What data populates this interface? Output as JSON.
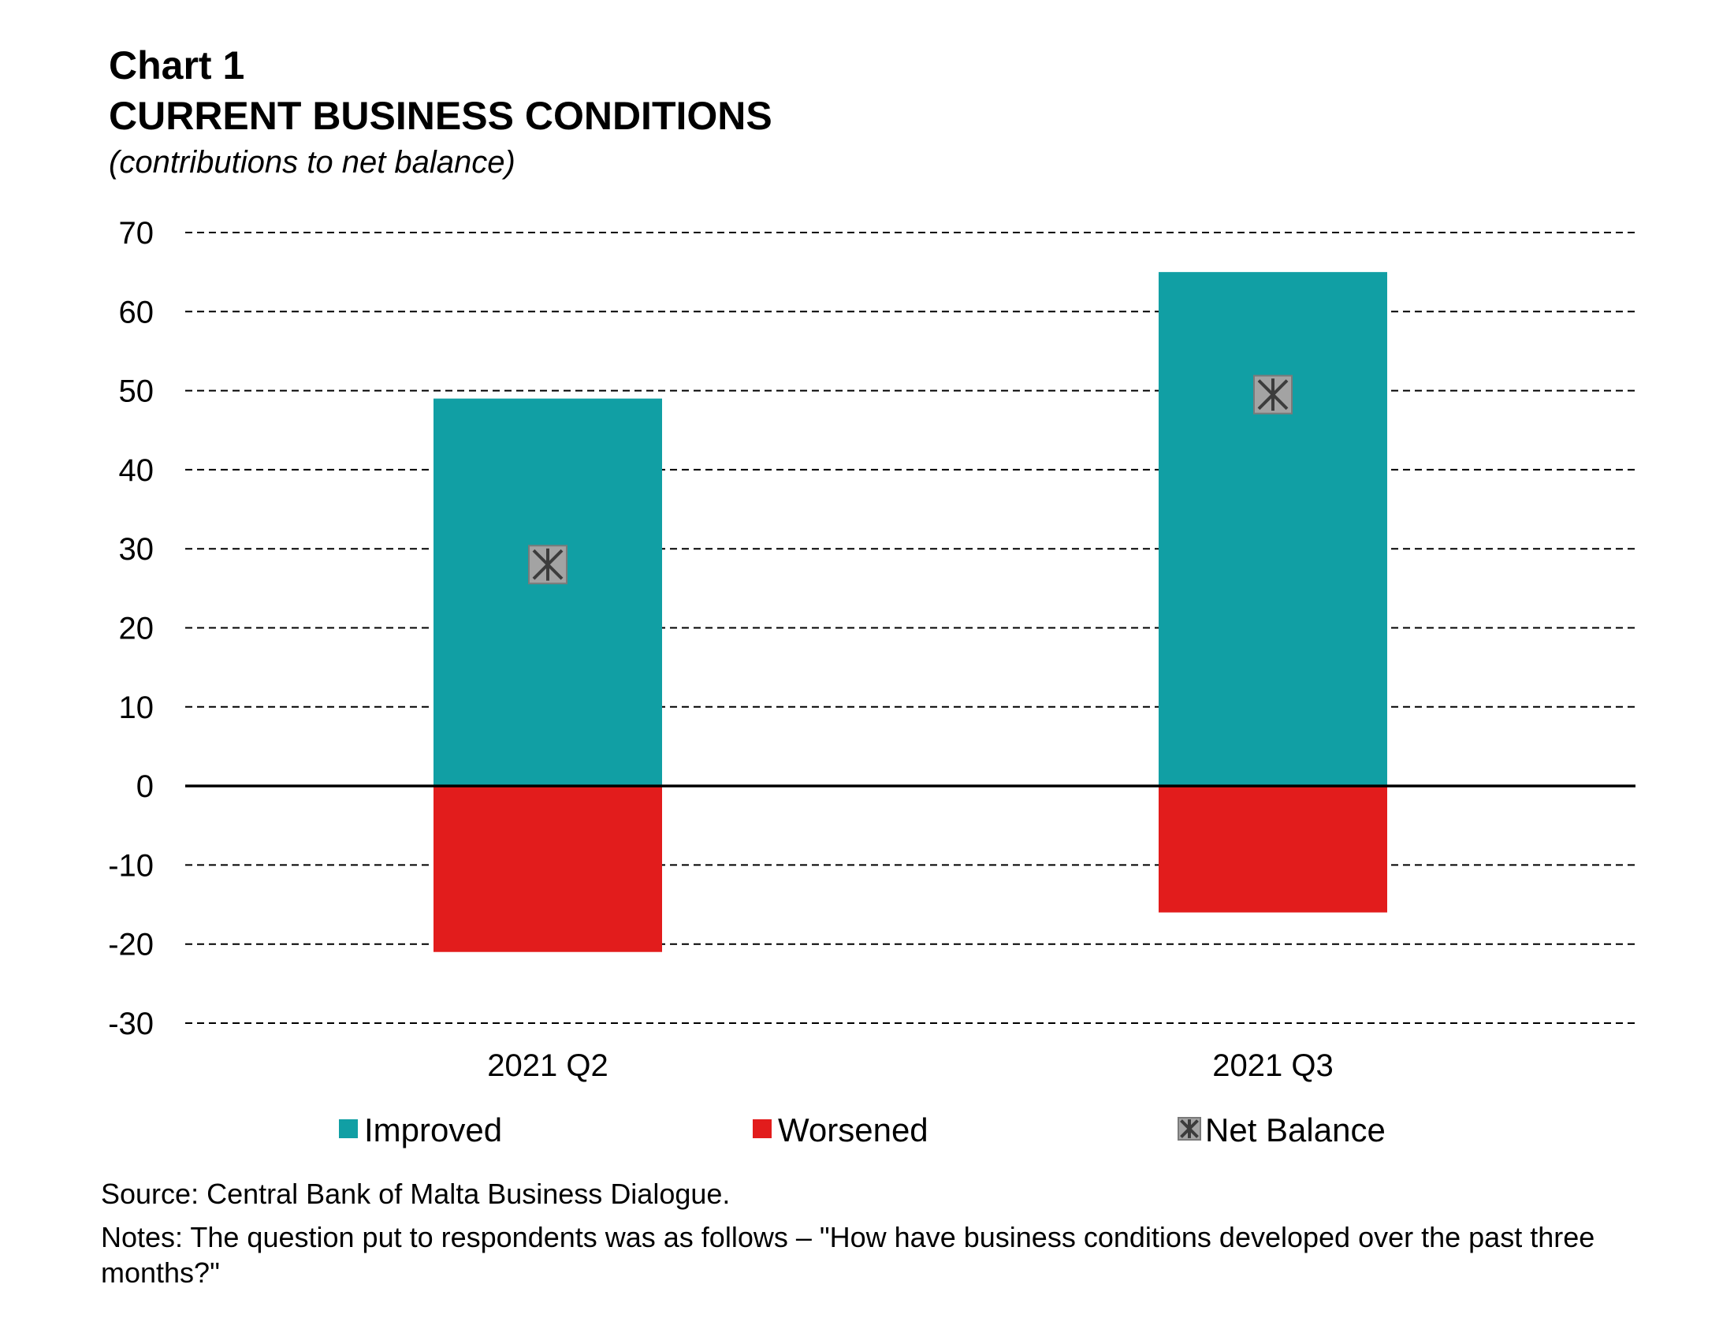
{
  "header": {
    "label": "Chart 1",
    "title": "CURRENT BUSINESS CONDITIONS",
    "subtitle": "(contributions to net balance)"
  },
  "chart_data": {
    "type": "bar",
    "stacked": true,
    "categories": [
      "2021 Q2",
      "2021 Q3"
    ],
    "series": [
      {
        "name": "Improved",
        "kind": "bar",
        "color": "#119fa4",
        "values": [
          49,
          65
        ]
      },
      {
        "name": "Worsened",
        "kind": "bar",
        "color": "#e21c1c",
        "values": [
          -21,
          -16
        ]
      },
      {
        "name": "Net Balance",
        "kind": "marker",
        "color": "#9a9a9a",
        "values": [
          28,
          49.5
        ]
      }
    ],
    "ylim": [
      -30,
      70
    ],
    "yticks": [
      70,
      60,
      50,
      40,
      30,
      20,
      10,
      0,
      -10,
      -20,
      -30
    ],
    "grid": true,
    "legend": "bottom"
  },
  "footer": {
    "source": "Source: Central Bank of Malta Business Dialogue.",
    "notes": "Notes: The question put to respondents was as follows – \"How have business conditions developed over the past three months?\""
  }
}
